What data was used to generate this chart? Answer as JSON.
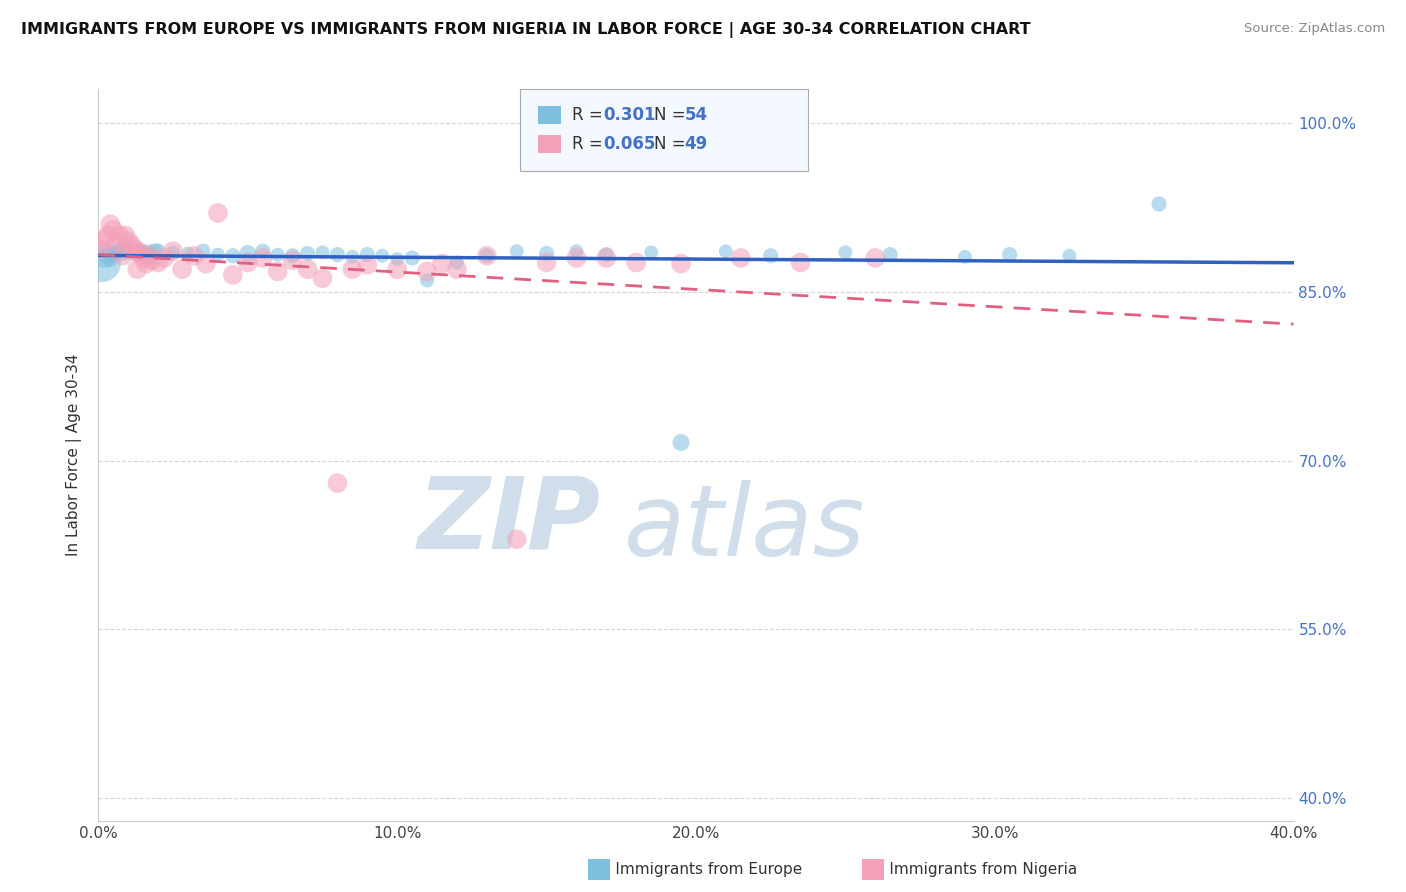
{
  "title": "IMMIGRANTS FROM EUROPE VS IMMIGRANTS FROM NIGERIA IN LABOR FORCE | AGE 30-34 CORRELATION CHART",
  "source_text": "Source: ZipAtlas.com",
  "ylabel": "In Labor Force | Age 30-34",
  "xlim": [
    0.0,
    0.4
  ],
  "ylim": [
    0.38,
    1.03
  ],
  "xtick_labels": [
    "0.0%",
    "10.0%",
    "20.0%",
    "30.0%",
    "40.0%"
  ],
  "xtick_vals": [
    0.0,
    0.1,
    0.2,
    0.3,
    0.4
  ],
  "ytick_labels": [
    "100.0%",
    "85.0%",
    "70.0%",
    "55.0%",
    "40.0%"
  ],
  "ytick_vals": [
    1.0,
    0.85,
    0.7,
    0.55,
    0.4
  ],
  "R_europe": 0.301,
  "N_europe": 54,
  "R_nigeria": 0.065,
  "N_nigeria": 49,
  "blue_color": "#7fbfdf",
  "pink_color": "#f4a0b8",
  "trend_blue": "#3060c0",
  "trend_pink": "#e06080",
  "watermark_zip": "ZIP",
  "watermark_atlas": "atlas",
  "watermark_color_zip": "#c8d8e8",
  "watermark_color_atlas": "#c8d8e8",
  "background_color": "#ffffff",
  "eu_x": [
    0.001,
    0.002,
    0.003,
    0.004,
    0.005,
    0.006,
    0.007,
    0.008,
    0.009,
    0.01,
    0.011,
    0.012,
    0.013,
    0.014,
    0.015,
    0.016,
    0.017,
    0.018,
    0.019,
    0.02,
    0.025,
    0.03,
    0.035,
    0.04,
    0.045,
    0.05,
    0.055,
    0.06,
    0.065,
    0.07,
    0.075,
    0.08,
    0.085,
    0.09,
    0.095,
    0.1,
    0.105,
    0.11,
    0.12,
    0.13,
    0.14,
    0.15,
    0.16,
    0.17,
    0.185,
    0.195,
    0.21,
    0.225,
    0.25,
    0.265,
    0.29,
    0.305,
    0.325,
    0.355
  ],
  "eu_y": [
    0.876,
    0.88,
    0.882,
    0.878,
    0.883,
    0.886,
    0.888,
    0.885,
    0.889,
    0.887,
    0.884,
    0.886,
    0.883,
    0.887,
    0.885,
    0.884,
    0.886,
    0.882,
    0.887,
    0.886,
    0.885,
    0.884,
    0.886,
    0.883,
    0.882,
    0.884,
    0.886,
    0.883,
    0.882,
    0.884,
    0.885,
    0.883,
    0.881,
    0.883,
    0.882,
    0.879,
    0.88,
    0.86,
    0.876,
    0.882,
    0.886,
    0.884,
    0.886,
    0.883,
    0.885,
    0.716,
    0.886,
    0.882,
    0.885,
    0.883,
    0.881,
    0.883,
    0.882,
    0.928
  ],
  "eu_sizes": [
    800,
    200,
    150,
    100,
    120,
    100,
    120,
    150,
    100,
    120,
    100,
    120,
    100,
    100,
    100,
    120,
    100,
    100,
    100,
    120,
    100,
    100,
    120,
    100,
    120,
    150,
    120,
    100,
    120,
    120,
    100,
    120,
    100,
    120,
    100,
    100,
    120,
    100,
    100,
    120,
    100,
    120,
    100,
    120,
    100,
    150,
    100,
    120,
    100,
    120,
    100,
    120,
    100,
    120
  ],
  "ng_x": [
    0.001,
    0.002,
    0.003,
    0.004,
    0.005,
    0.006,
    0.007,
    0.008,
    0.009,
    0.01,
    0.011,
    0.012,
    0.013,
    0.014,
    0.015,
    0.016,
    0.017,
    0.018,
    0.02,
    0.022,
    0.025,
    0.028,
    0.032,
    0.036,
    0.04,
    0.045,
    0.05,
    0.055,
    0.06,
    0.065,
    0.07,
    0.075,
    0.08,
    0.085,
    0.09,
    0.1,
    0.11,
    0.115,
    0.12,
    0.13,
    0.14,
    0.15,
    0.16,
    0.17,
    0.18,
    0.195,
    0.215,
    0.235,
    0.26
  ],
  "ng_y": [
    0.888,
    0.896,
    0.9,
    0.91,
    0.905,
    0.895,
    0.9,
    0.882,
    0.9,
    0.895,
    0.892,
    0.888,
    0.87,
    0.885,
    0.88,
    0.875,
    0.882,
    0.878,
    0.876,
    0.88,
    0.886,
    0.87,
    0.882,
    0.875,
    0.92,
    0.865,
    0.876,
    0.88,
    0.868,
    0.878,
    0.87,
    0.862,
    0.68,
    0.87,
    0.874,
    0.87,
    0.868,
    0.875,
    0.87,
    0.882,
    0.63,
    0.876,
    0.88,
    0.88,
    0.876,
    0.875,
    0.88,
    0.876,
    0.88
  ],
  "ng_sizes": [
    200,
    200,
    200,
    200,
    200,
    200,
    200,
    200,
    200,
    200,
    200,
    200,
    200,
    200,
    200,
    200,
    200,
    200,
    200,
    200,
    200,
    200,
    200,
    200,
    200,
    200,
    200,
    200,
    200,
    200,
    200,
    200,
    200,
    200,
    200,
    200,
    200,
    200,
    200,
    200,
    200,
    200,
    200,
    200,
    200,
    200,
    200,
    200,
    200
  ]
}
